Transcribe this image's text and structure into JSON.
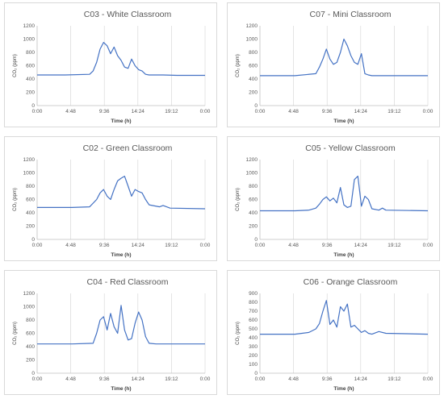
{
  "chart_data": [
    {
      "type": "line",
      "title": "C03 - White Classroom",
      "xlabel": "Time (h)",
      "ylabel": "CO₂ (ppm)",
      "x_ticks": [
        "0:00",
        "4:48",
        "9:36",
        "14:24",
        "19:12",
        "0:00"
      ],
      "ylim": [
        0,
        1200
      ],
      "y_ticks": [
        0,
        200,
        400,
        600,
        800,
        1000,
        1200
      ],
      "grid": "vertical",
      "color": "#4472c4",
      "series": [
        {
          "x": [
            0,
            4,
            7.5,
            8,
            8.5,
            9,
            9.5,
            10,
            10.5,
            11,
            11.5,
            12,
            12.5,
            13,
            13.5,
            14,
            14.5,
            15,
            15.5,
            16,
            18,
            20,
            24
          ],
          "y": [
            460,
            460,
            470,
            520,
            650,
            850,
            950,
            900,
            780,
            880,
            750,
            680,
            580,
            560,
            700,
            600,
            540,
            520,
            470,
            460,
            460,
            455,
            455
          ]
        }
      ]
    },
    {
      "type": "line",
      "title": "C07 - Mini Classroom",
      "xlabel": "Time (h)",
      "ylabel": "CO₂ (ppm)",
      "x_ticks": [
        "0:00",
        "4:48",
        "9:36",
        "14:24",
        "19:12",
        "0:00"
      ],
      "ylim": [
        0,
        1200
      ],
      "y_ticks": [
        0,
        200,
        400,
        600,
        800,
        1000,
        1200
      ],
      "grid": "vertical",
      "color": "#4472c4",
      "series": [
        {
          "x": [
            0,
            5,
            8,
            8.5,
            9,
            9.5,
            10,
            10.5,
            11,
            11.5,
            12,
            12.5,
            13,
            13.5,
            14,
            14.5,
            15,
            15.5,
            16,
            18,
            24
          ],
          "y": [
            450,
            450,
            480,
            580,
            700,
            850,
            700,
            620,
            650,
            800,
            1000,
            900,
            750,
            650,
            620,
            780,
            480,
            460,
            450,
            450,
            450
          ]
        }
      ]
    },
    {
      "type": "line",
      "title": "C02 - Green Classroom",
      "xlabel": "Time (h)",
      "ylabel": "CO₂ (ppm)",
      "x_ticks": [
        "0:00",
        "4:48",
        "9:36",
        "14:24",
        "19:12",
        "0:00"
      ],
      "ylim": [
        0,
        1200
      ],
      "y_ticks": [
        0,
        200,
        400,
        600,
        800,
        1000,
        1200
      ],
      "grid": "vertical",
      "color": "#4472c4",
      "series": [
        {
          "x": [
            0,
            5,
            7.5,
            8.5,
            9,
            9.5,
            10,
            10.5,
            11,
            11.5,
            12,
            12.5,
            13,
            13.5,
            14,
            14.5,
            15,
            15.5,
            16,
            17.5,
            18,
            19,
            24
          ],
          "y": [
            480,
            480,
            490,
            600,
            700,
            750,
            650,
            600,
            750,
            880,
            920,
            950,
            800,
            650,
            750,
            720,
            700,
            600,
            520,
            490,
            510,
            470,
            460
          ]
        }
      ]
    },
    {
      "type": "line",
      "title": "C05 - Yellow Classroom",
      "xlabel": "Time (h)",
      "ylabel": "CO₂ (ppm)",
      "x_ticks": [
        "0:00",
        "4:48",
        "9:36",
        "14:24",
        "19:12",
        "0:00"
      ],
      "ylim": [
        0,
        1200
      ],
      "y_ticks": [
        0,
        200,
        400,
        600,
        800,
        1000,
        1200
      ],
      "grid": "vertical",
      "color": "#4472c4",
      "series": [
        {
          "x": [
            0,
            5,
            7,
            8,
            8.5,
            9,
            9.5,
            10,
            10.5,
            11,
            11.5,
            12,
            12.5,
            13,
            13.5,
            14,
            14.5,
            15,
            15.5,
            16,
            17,
            17.5,
            18,
            24
          ],
          "y": [
            430,
            430,
            440,
            470,
            530,
            600,
            640,
            580,
            620,
            550,
            780,
            520,
            480,
            500,
            900,
            950,
            500,
            650,
            600,
            460,
            440,
            470,
            440,
            430
          ]
        }
      ]
    },
    {
      "type": "line",
      "title": "C04 - Red Classroom",
      "xlabel": "Time (h)",
      "ylabel": "CO₂ (ppm)",
      "x_ticks": [
        "0:00",
        "4:48",
        "9:36",
        "14:24",
        "19:12",
        "0:00"
      ],
      "ylim": [
        0,
        1200
      ],
      "y_ticks": [
        0,
        200,
        400,
        600,
        800,
        1000,
        1200
      ],
      "grid": "vertical",
      "color": "#4472c4",
      "series": [
        {
          "x": [
            0,
            5,
            8,
            8.5,
            9,
            9.5,
            10,
            10.5,
            11,
            11.5,
            12,
            12.5,
            13,
            13.5,
            14,
            14.5,
            15,
            15.5,
            16,
            17,
            24
          ],
          "y": [
            440,
            440,
            450,
            600,
            800,
            850,
            650,
            900,
            700,
            600,
            1020,
            650,
            500,
            520,
            750,
            920,
            800,
            550,
            450,
            440,
            440
          ]
        }
      ]
    },
    {
      "type": "line",
      "title": "C06 - Orange Classroom",
      "xlabel": "Time (h)",
      "ylabel": "CO₂ (ppm)",
      "x_ticks": [
        "0:00",
        "4:48",
        "9:36",
        "14:24",
        "19:12",
        "0:00"
      ],
      "ylim": [
        0,
        900
      ],
      "y_ticks": [
        0,
        100,
        200,
        300,
        400,
        500,
        600,
        700,
        800,
        900
      ],
      "grid": "vertical",
      "color": "#4472c4",
      "series": [
        {
          "x": [
            0,
            5,
            7,
            8,
            8.5,
            9,
            9.5,
            10,
            10.5,
            11,
            11.5,
            12,
            12.5,
            13,
            13.5,
            14,
            14.5,
            15,
            15.5,
            16,
            17,
            18,
            24
          ],
          "y": [
            440,
            440,
            460,
            500,
            560,
            700,
            820,
            550,
            600,
            520,
            750,
            700,
            780,
            520,
            540,
            500,
            460,
            480,
            450,
            440,
            470,
            450,
            440
          ]
        }
      ]
    }
  ]
}
